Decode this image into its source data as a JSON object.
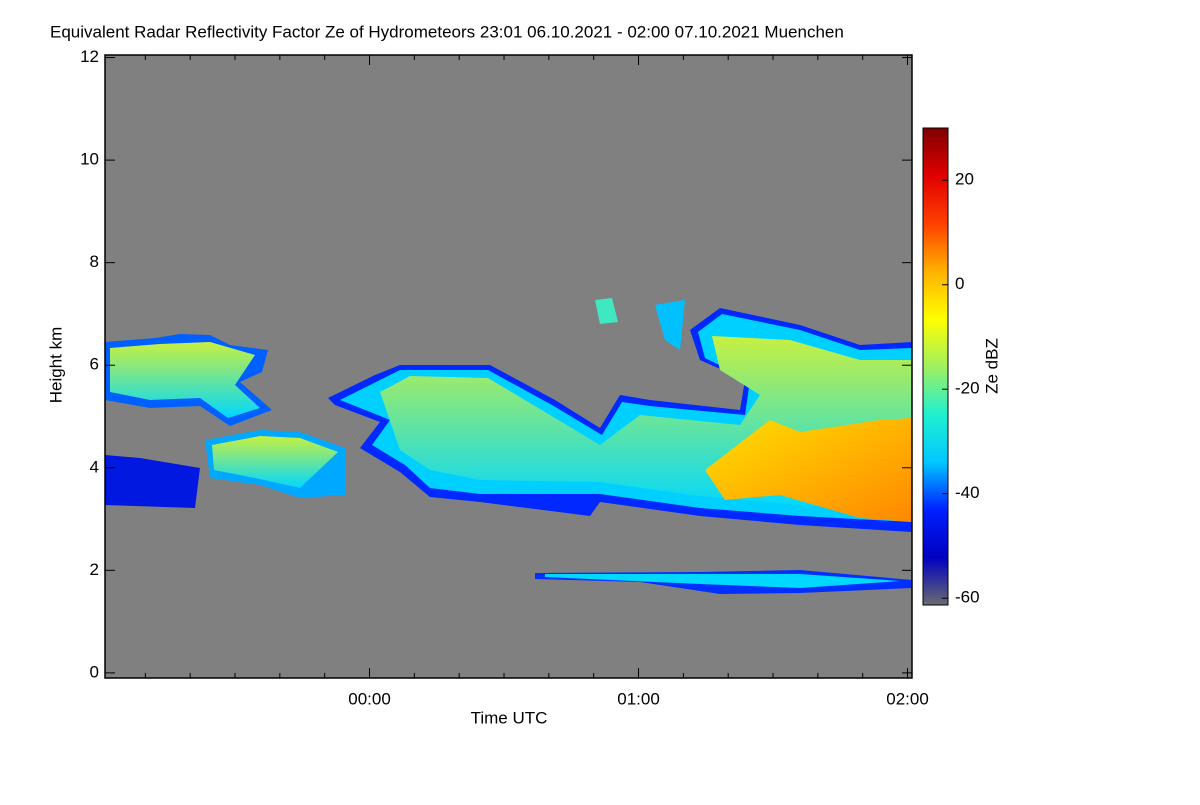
{
  "chart_data": {
    "type": "heatmap",
    "title": "Equivalent Radar Reflectivity Factor Ze of Hydrometeors   23:01 06.10.2021 - 02:00 07.10.2021 Muenchen",
    "x_label": "Time UTC",
    "y_label": "Height km",
    "colorbar_label": "Ze dBZ",
    "xlim": [
      -59,
      121
    ],
    "xticks": [
      {
        "value": 0,
        "label": "00:00"
      },
      {
        "value": 60,
        "label": "01:00"
      },
      {
        "value": 120,
        "label": "02:00"
      }
    ],
    "xminorticks": [
      -50,
      -40,
      -30,
      -20,
      -10,
      10,
      20,
      30,
      40,
      50,
      70,
      80,
      90,
      100,
      110
    ],
    "ylim": [
      -0.1,
      12.05
    ],
    "yticks": [
      0,
      2,
      4,
      6,
      8,
      10,
      12
    ],
    "clim": [
      -61.3,
      30
    ],
    "cticks": [
      -60,
      -40,
      -20,
      0,
      20
    ],
    "background_color": "#808080",
    "colormap": [
      "#6a6a72",
      "#0000c0",
      "#0020ff",
      "#00c8ff",
      "#20f0d0",
      "#a0f060",
      "#ffff00",
      "#ffb000",
      "#ff4000",
      "#e00000",
      "#800000"
    ]
  }
}
